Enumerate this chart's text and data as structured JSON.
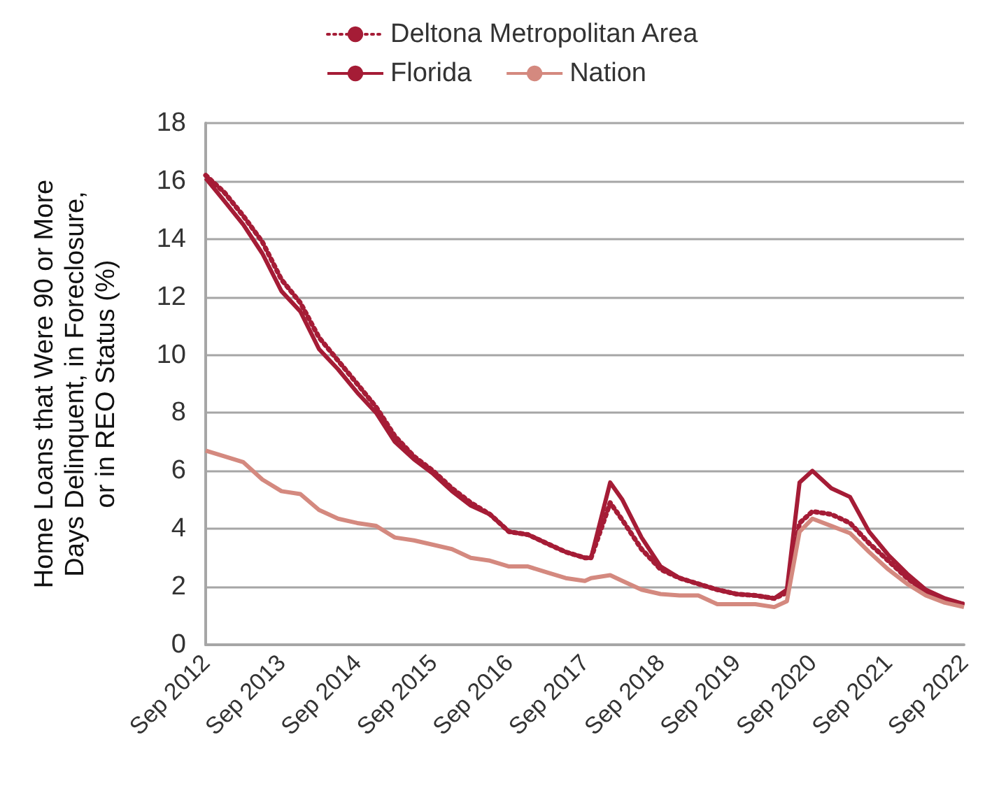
{
  "chart_data": {
    "type": "line",
    "ylabel": "Home Loans that Were 90 or More\nDays Delinquent, in Foreclosure,\nor in REO Status (%)",
    "x": [
      "2012-09",
      "2012-12",
      "2013-03",
      "2013-06",
      "2013-09",
      "2013-12",
      "2014-03",
      "2014-06",
      "2014-09",
      "2014-12",
      "2015-03",
      "2015-06",
      "2015-09",
      "2015-12",
      "2016-03",
      "2016-06",
      "2016-09",
      "2016-12",
      "2017-03",
      "2017-06",
      "2017-09",
      "2017-10",
      "2018-01",
      "2018-03",
      "2018-06",
      "2018-09",
      "2018-12",
      "2019-03",
      "2019-06",
      "2019-09",
      "2019-12",
      "2020-03",
      "2020-05",
      "2020-07",
      "2020-09",
      "2020-12",
      "2021-03",
      "2021-06",
      "2021-09",
      "2021-12",
      "2022-03",
      "2022-06",
      "2022-09"
    ],
    "series": [
      {
        "name": "Deltona Metropolitan Area",
        "color": "#a51c36",
        "line_style": "dotted",
        "values": [
          16.2,
          15.6,
          14.8,
          13.9,
          12.6,
          11.8,
          10.6,
          9.8,
          9.0,
          8.2,
          7.2,
          6.5,
          6.0,
          5.4,
          4.9,
          4.5,
          3.9,
          3.8,
          3.5,
          3.2,
          3.0,
          3.0,
          4.9,
          4.3,
          3.3,
          2.6,
          2.3,
          2.1,
          1.9,
          1.75,
          1.7,
          1.6,
          1.8,
          4.2,
          4.6,
          4.5,
          4.2,
          3.5,
          2.9,
          2.3,
          1.8,
          1.5,
          1.4
        ]
      },
      {
        "name": "Florida",
        "color": "#a51c36",
        "line_style": "solid",
        "values": [
          16.1,
          15.3,
          14.5,
          13.5,
          12.2,
          11.5,
          10.2,
          9.5,
          8.7,
          8.0,
          7.0,
          6.4,
          5.9,
          5.3,
          4.8,
          4.5,
          3.9,
          3.8,
          3.5,
          3.2,
          3.0,
          3.0,
          5.6,
          5.0,
          3.7,
          2.7,
          2.3,
          2.1,
          1.9,
          1.75,
          1.7,
          1.6,
          1.9,
          5.6,
          6.0,
          5.4,
          5.1,
          3.9,
          3.1,
          2.45,
          1.9,
          1.6,
          1.4
        ]
      },
      {
        "name": "Nation",
        "color": "#d4897f",
        "line_style": "solid",
        "values": [
          6.7,
          6.5,
          6.3,
          5.7,
          5.3,
          5.2,
          4.65,
          4.35,
          4.2,
          4.1,
          3.7,
          3.6,
          3.45,
          3.3,
          3.0,
          2.9,
          2.7,
          2.7,
          2.5,
          2.3,
          2.2,
          2.3,
          2.4,
          2.2,
          1.9,
          1.75,
          1.7,
          1.7,
          1.4,
          1.4,
          1.4,
          1.3,
          1.5,
          3.9,
          4.35,
          4.1,
          3.85,
          3.2,
          2.6,
          2.1,
          1.7,
          1.45,
          1.3
        ]
      }
    ],
    "xlim": [
      "2012-09",
      "2022-09"
    ],
    "xticks": [
      {
        "value": "2012-09",
        "label": "Sep 2012"
      },
      {
        "value": "2013-09",
        "label": "Sep 2013"
      },
      {
        "value": "2014-09",
        "label": "Sep 2014"
      },
      {
        "value": "2015-09",
        "label": "Sep 2015"
      },
      {
        "value": "2016-09",
        "label": "Sep 2016"
      },
      {
        "value": "2017-09",
        "label": "Sep 2017"
      },
      {
        "value": "2018-09",
        "label": "Sep 2018"
      },
      {
        "value": "2019-09",
        "label": "Sep 2019"
      },
      {
        "value": "2020-09",
        "label": "Sep 2020"
      },
      {
        "value": "2021-09",
        "label": "Sep 2021"
      },
      {
        "value": "2022-09",
        "label": "Sep 2022"
      }
    ],
    "ylim": [
      0,
      18
    ],
    "yticks": [
      0,
      2,
      4,
      6,
      8,
      10,
      12,
      14,
      16,
      18
    ],
    "grid": "y",
    "legend": "top",
    "marker": "none"
  }
}
